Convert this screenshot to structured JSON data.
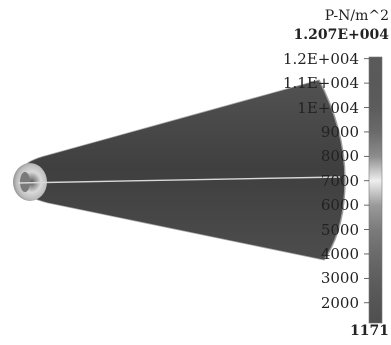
{
  "legend": {
    "unit": "P-N/m^2",
    "max_value": "1.207E+004",
    "min_value": "1171",
    "ticks": [
      "1.2E+004",
      "1.1E+004",
      "1E+004",
      "9000",
      "8000",
      "7000",
      "6000",
      "5000",
      "4000",
      "3000",
      "2000"
    ]
  },
  "colors": {
    "cone": "#4a4a4a",
    "cone_center": "#3e3e3e",
    "tip_glow": "#e0e0e0",
    "axis_line": "#d9d9d9",
    "background": "#ffffff"
  },
  "colorbar_levels": [
    {
      "value": 12070,
      "color": "#5a5a5a"
    },
    {
      "value": 11000,
      "color": "#595959"
    },
    {
      "value": 10000,
      "color": "#5c5c5c"
    },
    {
      "value": 9000,
      "color": "#6a6a6a"
    },
    {
      "value": 8000,
      "color": "#8c8c8c"
    },
    {
      "value": 7000,
      "color": "#eeeeee"
    },
    {
      "value": 6000,
      "color": "#9a9a9a"
    },
    {
      "value": 5000,
      "color": "#7b7b7b"
    },
    {
      "value": 4000,
      "color": "#6b6b6b"
    },
    {
      "value": 3000,
      "color": "#5e5e5e"
    },
    {
      "value": 2000,
      "color": "#555555"
    },
    {
      "value": 1171,
      "color": "#4f4f4f"
    }
  ]
}
